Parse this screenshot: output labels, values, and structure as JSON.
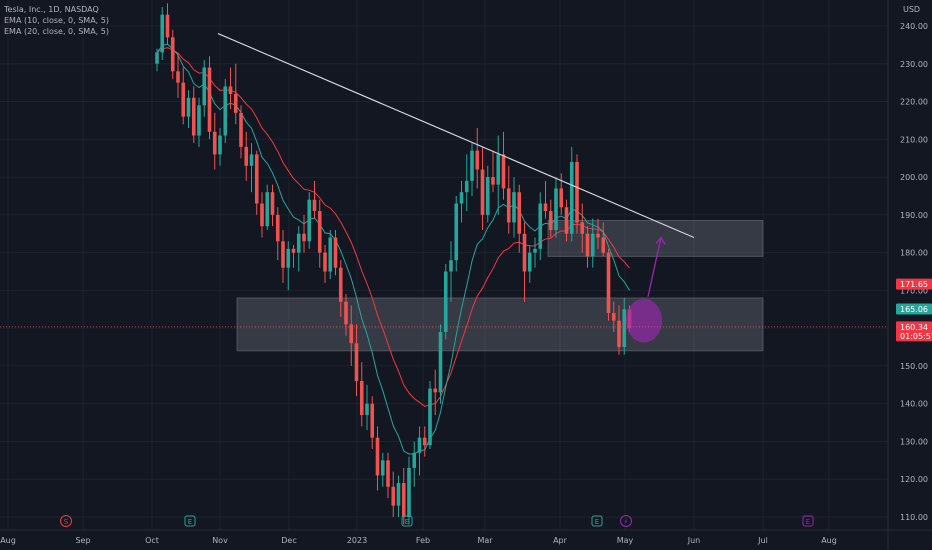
{
  "header": {
    "symbol_line": "Tesla, Inc., 1D, NASDAQ",
    "indicators": [
      "EMA (10, close, 0, SMA, 5)",
      "EMA (20, close, 0, SMA, 5)"
    ]
  },
  "colors": {
    "background": "#131722",
    "up": "#26a69a",
    "down": "#ef5350",
    "ema10": "#26a69a",
    "ema20": "#f23645",
    "trendline": "#d1d4dc",
    "zone": "#787b86",
    "projection": "#9c27b0",
    "grid": "#1e222d"
  },
  "chart_data": {
    "type": "candlestick",
    "currency_label": "USD",
    "y_ticks": [
      110,
      120,
      130,
      140,
      150,
      160,
      170,
      180,
      190,
      200,
      210,
      220,
      230,
      240
    ],
    "y_tick_labels": [
      "110.00",
      "120.00",
      "130.00",
      "140.00",
      "150.00",
      "160.00",
      "170.00",
      "180.00",
      "190.00",
      "200.00",
      "210.00",
      "220.00",
      "230.00",
      "240.00"
    ],
    "x_labels": [
      "Aug",
      "Sep",
      "Oct",
      "Nov",
      "Dec",
      "2023",
      "Feb",
      "Mar",
      "Apr",
      "May",
      "Jun",
      "Jul",
      "Aug"
    ],
    "ylim": [
      108,
      247
    ],
    "price_tags": [
      {
        "value": 171.65,
        "label": "171.65",
        "color": "#f23645"
      },
      {
        "value": 165.06,
        "label": "165.06",
        "color": "#26a69a"
      },
      {
        "value": 160.34,
        "label": "160.34",
        "sublabel": "01:05:57",
        "color": "#f23645"
      }
    ],
    "current_price_line": 160.34,
    "candles": [
      [
        230,
        234,
        228,
        233
      ],
      [
        233,
        245,
        231,
        243
      ],
      [
        243,
        246,
        235,
        237
      ],
      [
        237,
        239,
        226,
        228
      ],
      [
        228,
        233,
        221,
        225
      ],
      [
        225,
        229,
        214,
        216
      ],
      [
        216,
        223,
        213,
        221
      ],
      [
        221,
        224,
        209,
        211
      ],
      [
        211,
        221,
        208,
        219
      ],
      [
        219,
        231,
        216,
        229
      ],
      [
        229,
        232,
        210,
        212
      ],
      [
        212,
        217,
        202,
        206
      ],
      [
        206,
        213,
        203,
        211
      ],
      [
        211,
        226,
        209,
        224
      ],
      [
        224,
        229,
        218,
        222
      ],
      [
        222,
        230,
        214,
        217
      ],
      [
        217,
        219,
        205,
        208
      ],
      [
        208,
        212,
        199,
        203
      ],
      [
        203,
        209,
        196,
        206
      ],
      [
        206,
        207,
        190,
        193
      ],
      [
        193,
        196,
        184,
        187
      ],
      [
        187,
        198,
        186,
        196
      ],
      [
        196,
        198,
        187,
        190
      ],
      [
        190,
        192,
        178,
        183
      ],
      [
        183,
        186,
        172,
        176
      ],
      [
        176,
        183,
        170,
        181
      ],
      [
        181,
        182,
        176,
        180
      ],
      [
        180,
        187,
        175,
        185
      ],
      [
        185,
        190,
        180,
        183
      ],
      [
        183,
        196,
        181,
        194
      ],
      [
        194,
        199,
        189,
        191
      ],
      [
        191,
        194,
        176,
        180
      ],
      [
        180,
        182,
        172,
        175
      ],
      [
        175,
        186,
        173,
        184
      ],
      [
        184,
        186,
        174,
        176
      ],
      [
        176,
        178,
        163,
        167
      ],
      [
        167,
        169,
        158,
        161
      ],
      [
        161,
        166,
        150,
        156
      ],
      [
        156,
        161,
        142,
        146
      ],
      [
        146,
        151,
        134,
        137
      ],
      [
        137,
        145,
        133,
        140
      ],
      [
        140,
        142,
        128,
        131
      ],
      [
        131,
        134,
        117,
        121
      ],
      [
        121,
        127,
        118,
        125
      ],
      [
        125,
        127,
        115,
        118
      ],
      [
        118,
        122,
        110,
        113
      ],
      [
        113,
        121,
        110,
        119
      ],
      [
        119,
        123,
        108,
        110
      ],
      [
        110,
        126,
        108,
        123
      ],
      [
        123,
        130,
        118,
        127
      ],
      [
        127,
        134,
        121,
        131
      ],
      [
        131,
        134,
        126,
        129
      ],
      [
        129,
        146,
        128,
        144
      ],
      [
        144,
        149,
        137,
        143
      ],
      [
        143,
        161,
        140,
        159
      ],
      [
        159,
        177,
        157,
        175
      ],
      [
        175,
        183,
        167,
        178
      ],
      [
        178,
        195,
        175,
        193
      ],
      [
        193,
        199,
        188,
        196
      ],
      [
        196,
        206,
        191,
        199
      ],
      [
        199,
        209,
        195,
        207
      ],
      [
        207,
        213,
        197,
        202
      ],
      [
        202,
        208,
        186,
        190
      ],
      [
        190,
        203,
        188,
        200
      ],
      [
        200,
        207,
        196,
        198
      ],
      [
        198,
        211,
        190,
        206
      ],
      [
        206,
        212,
        194,
        197
      ],
      [
        197,
        203,
        185,
        188
      ],
      [
        188,
        200,
        184,
        196
      ],
      [
        196,
        198,
        180,
        185
      ],
      [
        185,
        188,
        167,
        175
      ],
      [
        175,
        182,
        172,
        180
      ],
      [
        180,
        184,
        176,
        181
      ],
      [
        181,
        196,
        178,
        193
      ],
      [
        193,
        199,
        189,
        191
      ],
      [
        191,
        194,
        184,
        186
      ],
      [
        186,
        200,
        184,
        197
      ],
      [
        197,
        201,
        190,
        192
      ],
      [
        192,
        194,
        183,
        185
      ],
      [
        185,
        208,
        183,
        204
      ],
      [
        204,
        206,
        185,
        188
      ],
      [
        188,
        193,
        180,
        185
      ],
      [
        185,
        187,
        176,
        179
      ],
      [
        179,
        189,
        176,
        185
      ],
      [
        185,
        189,
        181,
        184
      ],
      [
        184,
        188,
        179,
        180
      ],
      [
        180,
        181,
        162,
        164
      ],
      [
        164,
        167,
        159,
        162
      ],
      [
        162,
        166,
        153,
        155
      ],
      [
        155,
        168,
        153,
        165
      ],
      [
        165,
        166,
        159,
        160
      ]
    ],
    "trendline": {
      "from": {
        "bar": 7,
        "value": 238
      },
      "to": {
        "bar": 67,
        "value": 184
      }
    },
    "zones": [
      {
        "bar_from": 3,
        "bar_to": 69,
        "high": 168,
        "low": 154
      },
      {
        "bar_from": 51,
        "bar_to": 69,
        "high": 188.5,
        "low": 179
      }
    ],
    "projection": {
      "ellipse_bar": 58.5,
      "ellipse_value": 162,
      "arrow_to_bar": 60.8,
      "arrow_to_value": 184
    }
  }
}
